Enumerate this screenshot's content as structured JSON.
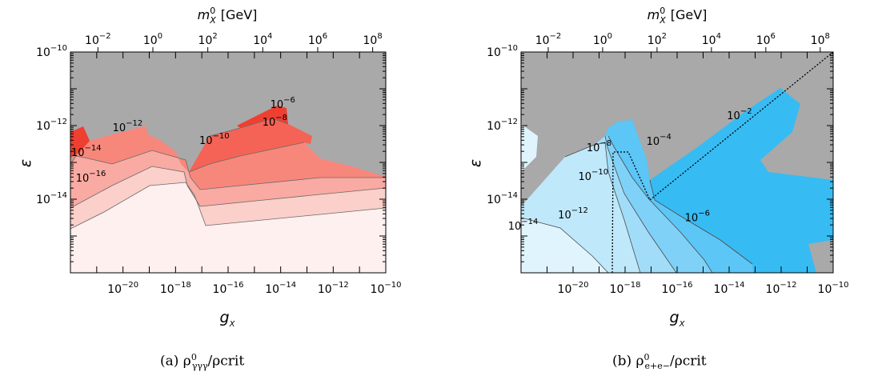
{
  "colors": {
    "excluded": "#a9a9a9",
    "red_levels": [
      "#fdf0ef",
      "#fbcfca",
      "#f9aaa2",
      "#f7877b",
      "#f46355",
      "#ef3f31"
    ],
    "blue_levels": [
      "#dff4fd",
      "#bfe8fb",
      "#a1ddf9",
      "#7fd1f7",
      "#5cc6f6",
      "#37bbf3"
    ]
  },
  "chart_data": [
    {
      "type": "contour",
      "panel": "a",
      "caption": "(a) ρ⁰γγγ/ρcrit",
      "caption_main": "(a) ρ",
      "caption_sup": "0",
      "caption_sub": "γγγ",
      "caption_tail": "/ρcrit",
      "xlabel": "gX",
      "xlabel_main": "g",
      "xlabel_sub": "X",
      "ylabel": "ε",
      "top_xlabel": "m⁰X [GeV]",
      "top_xlabel_main": "m",
      "top_xlabel_sup": "0",
      "top_xlabel_sub": "X",
      "top_xlabel_unit": "[GeV]",
      "xscale": "log",
      "yscale": "log",
      "xlim": [
        1e-22,
        1e-10
      ],
      "ylim": [
        1e-16,
        1e-10
      ],
      "top_xlim": [
        0.001,
        300000000.0
      ],
      "x_ticks": [
        {
          "base": "10",
          "exp": "−20",
          "value": 1e-20
        },
        {
          "base": "10",
          "exp": "−18",
          "value": 1e-18
        },
        {
          "base": "10",
          "exp": "−16",
          "value": 1e-16
        },
        {
          "base": "10",
          "exp": "−14",
          "value": 1e-14
        },
        {
          "base": "10",
          "exp": "−12",
          "value": 1e-12
        },
        {
          "base": "10",
          "exp": "−10",
          "value": 1e-10
        }
      ],
      "y_ticks": [
        {
          "base": "10",
          "exp": "−10",
          "value": 1e-10
        },
        {
          "base": "10",
          "exp": "−12",
          "value": 1e-12
        },
        {
          "base": "10",
          "exp": "−14",
          "value": 1e-14
        }
      ],
      "top_ticks": [
        {
          "base": "10",
          "exp": "−2",
          "value": 0.01
        },
        {
          "base": "10",
          "exp": "0",
          "value": 1
        },
        {
          "base": "10",
          "exp": "2",
          "value": 100
        },
        {
          "base": "10",
          "exp": "4",
          "value": 10000
        },
        {
          "base": "10",
          "exp": "6",
          "value": 1000000
        },
        {
          "base": "10",
          "exp": "8",
          "value": 100000000
        }
      ],
      "contour_labels": [
        {
          "base": "10",
          "exp": "−6",
          "x": 1.2e-14,
          "y": 3e-12
        },
        {
          "base": "10",
          "exp": "−8",
          "x": 6e-15,
          "y": 1e-12
        },
        {
          "base": "10",
          "exp": "−10",
          "x": 3e-17,
          "y": 3.2e-13
        },
        {
          "base": "10",
          "exp": "−12",
          "x": 1.5e-20,
          "y": 7e-13
        },
        {
          "base": "10",
          "exp": "−14",
          "x": 4e-22,
          "y": 1.5e-13
        },
        {
          "base": "10",
          "exp": "−16",
          "x": 6e-22,
          "y": 3e-14
        }
      ]
    },
    {
      "type": "contour",
      "panel": "b",
      "caption": "(b) ρ⁰e+e−/ρcrit",
      "caption_main": "(b) ρ",
      "caption_sup": "0",
      "caption_sub": "e+e−",
      "caption_tail": "/ρcrit",
      "xlabel": "gX",
      "xlabel_main": "g",
      "xlabel_sub": "X",
      "ylabel": "ε",
      "top_xlabel": "m⁰X [GeV]",
      "top_xlabel_main": "m",
      "top_xlabel_sup": "0",
      "top_xlabel_sub": "X",
      "top_xlabel_unit": "[GeV]",
      "xscale": "log",
      "yscale": "log",
      "xlim": [
        1e-22,
        1e-10
      ],
      "ylim": [
        1e-16,
        1e-10
      ],
      "top_xlim": [
        0.001,
        300000000.0
      ],
      "x_ticks": [
        {
          "base": "10",
          "exp": "−20",
          "value": 1e-20
        },
        {
          "base": "10",
          "exp": "−18",
          "value": 1e-18
        },
        {
          "base": "10",
          "exp": "−16",
          "value": 1e-16
        },
        {
          "base": "10",
          "exp": "−14",
          "value": 1e-14
        },
        {
          "base": "10",
          "exp": "−12",
          "value": 1e-12
        },
        {
          "base": "10",
          "exp": "−10",
          "value": 1e-10
        }
      ],
      "y_ticks": [
        {
          "base": "10",
          "exp": "−10",
          "value": 1e-10
        },
        {
          "base": "10",
          "exp": "−12",
          "value": 1e-12
        },
        {
          "base": "10",
          "exp": "−14",
          "value": 1e-14
        }
      ],
      "top_ticks": [
        {
          "base": "10",
          "exp": "−2",
          "value": 0.01
        },
        {
          "base": "10",
          "exp": "0",
          "value": 1
        },
        {
          "base": "10",
          "exp": "2",
          "value": 100
        },
        {
          "base": "10",
          "exp": "4",
          "value": 10000
        },
        {
          "base": "10",
          "exp": "6",
          "value": 1000000
        },
        {
          "base": "10",
          "exp": "8",
          "value": 100000000
        }
      ],
      "contour_labels": [
        {
          "base": "10",
          "exp": "−2",
          "x": 2.5e-14,
          "y": 1.5e-12
        },
        {
          "base": "10",
          "exp": "−4",
          "x": 2e-17,
          "y": 3e-13
        },
        {
          "base": "10",
          "exp": "−6",
          "x": 6e-16,
          "y": 2.5e-15
        },
        {
          "base": "10",
          "exp": "−8",
          "x": 1e-19,
          "y": 2e-13
        },
        {
          "base": "10",
          "exp": "−10",
          "x": 6e-20,
          "y": 3.3e-14
        },
        {
          "base": "10",
          "exp": "−12",
          "x": 1e-20,
          "y": 3e-15
        },
        {
          "base": "10",
          "exp": "−14",
          "x": 1.2e-22,
          "y": 1.5e-15
        }
      ]
    }
  ]
}
